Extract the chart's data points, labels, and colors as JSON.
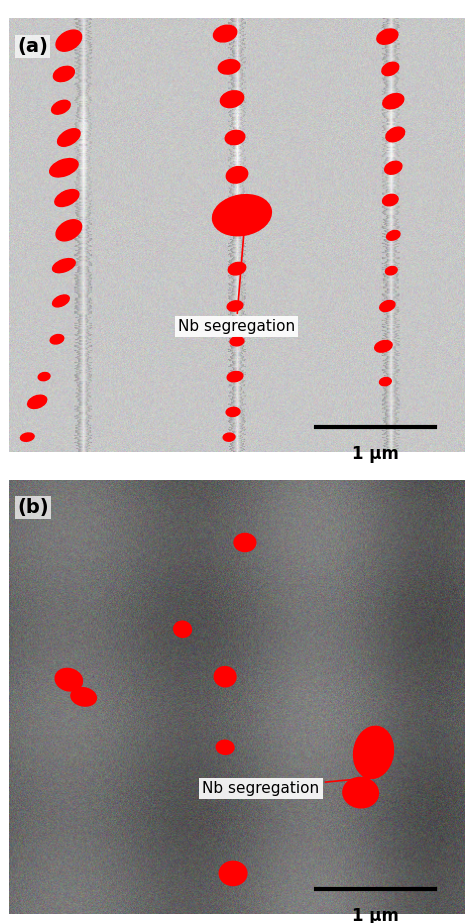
{
  "fig_width": 4.74,
  "fig_height": 9.23,
  "dpi": 100,
  "panel_a_label": "(a)",
  "panel_b_label": "(b)",
  "annotation_text": "Nb segregation",
  "scalebar_text": "1 μm",
  "bg_color_a": "#c8c8c8",
  "bg_color_b": "#606060",
  "red_color": "#ff0000",
  "white_bg": "#ffffff"
}
